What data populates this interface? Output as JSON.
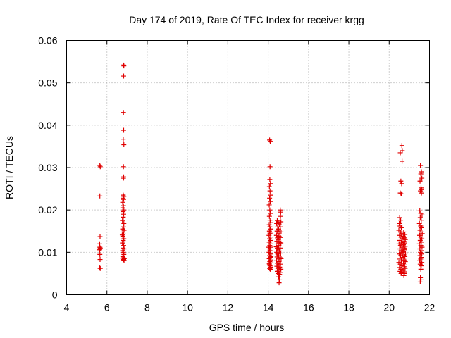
{
  "chart_data": {
    "type": "scatter",
    "title": "Day 174 of 2019, Rate Of TEC Index for receiver krgg",
    "xlabel": "GPS time / hours",
    "ylabel": "ROTI / TECUs",
    "xlim": [
      4,
      22
    ],
    "ylim": [
      0,
      0.06
    ],
    "x_ticks": [
      4,
      6,
      8,
      10,
      12,
      14,
      16,
      18,
      20,
      22
    ],
    "y_ticks": [
      0,
      0.01,
      0.02,
      0.03,
      0.04,
      0.05,
      0.06
    ],
    "x_tick_labels": [
      "4",
      "6",
      "8",
      "10",
      "12",
      "14",
      "16",
      "18",
      "20",
      "22"
    ],
    "y_tick_labels": [
      "0",
      "0.01",
      "0.02",
      "0.03",
      "0.04",
      "0.05",
      "0.06"
    ],
    "grid": true,
    "marker": "plus",
    "color": "#e00000",
    "points": [
      [
        5.65,
        0.0305
      ],
      [
        5.67,
        0.0302
      ],
      [
        5.65,
        0.0233
      ],
      [
        5.66,
        0.0137
      ],
      [
        5.64,
        0.012
      ],
      [
        5.65,
        0.0112
      ],
      [
        5.66,
        0.0108
      ],
      [
        5.64,
        0.0106
      ],
      [
        5.67,
        0.011
      ],
      [
        5.65,
        0.0095
      ],
      [
        5.66,
        0.0083
      ],
      [
        5.64,
        0.0063
      ],
      [
        5.67,
        0.0062
      ],
      [
        6.82,
        0.0542
      ],
      [
        6.84,
        0.054
      ],
      [
        6.83,
        0.0516
      ],
      [
        6.82,
        0.043
      ],
      [
        6.83,
        0.0388
      ],
      [
        6.81,
        0.0367
      ],
      [
        6.84,
        0.0354
      ],
      [
        6.82,
        0.0302
      ],
      [
        6.83,
        0.0278
      ],
      [
        6.82,
        0.0275
      ],
      [
        6.81,
        0.0235
      ],
      [
        6.84,
        0.0232
      ],
      [
        6.8,
        0.0228
      ],
      [
        6.83,
        0.0225
      ],
      [
        6.78,
        0.0218
      ],
      [
        6.82,
        0.021
      ],
      [
        6.79,
        0.0205
      ],
      [
        6.84,
        0.02
      ],
      [
        6.8,
        0.0196
      ],
      [
        6.83,
        0.019
      ],
      [
        6.81,
        0.0183
      ],
      [
        6.77,
        0.0175
      ],
      [
        6.84,
        0.0168
      ],
      [
        6.82,
        0.016
      ],
      [
        6.78,
        0.0155
      ],
      [
        6.85,
        0.0152
      ],
      [
        6.8,
        0.0148
      ],
      [
        6.83,
        0.0143
      ],
      [
        6.76,
        0.0141
      ],
      [
        6.79,
        0.0138
      ],
      [
        6.84,
        0.0132
      ],
      [
        6.81,
        0.0128
      ],
      [
        6.77,
        0.0122
      ],
      [
        6.83,
        0.0116
      ],
      [
        6.8,
        0.011
      ],
      [
        6.85,
        0.0108
      ],
      [
        6.78,
        0.0104
      ],
      [
        6.82,
        0.01
      ],
      [
        6.84,
        0.0095
      ],
      [
        6.79,
        0.009
      ],
      [
        6.81,
        0.0087
      ],
      [
        6.86,
        0.0085
      ],
      [
        6.83,
        0.0083
      ],
      [
        6.8,
        0.0082
      ],
      [
        6.78,
        0.0086
      ],
      [
        6.85,
        0.0081
      ],
      [
        14.07,
        0.0365
      ],
      [
        14.1,
        0.0362
      ],
      [
        14.09,
        0.0302
      ],
      [
        14.08,
        0.0272
      ],
      [
        14.11,
        0.0262
      ],
      [
        14.06,
        0.0255
      ],
      [
        14.09,
        0.0245
      ],
      [
        14.12,
        0.0235
      ],
      [
        14.07,
        0.0228
      ],
      [
        14.1,
        0.022
      ],
      [
        14.05,
        0.0212
      ],
      [
        14.08,
        0.02
      ],
      [
        14.11,
        0.0192
      ],
      [
        14.06,
        0.0185
      ],
      [
        14.09,
        0.0176
      ],
      [
        14.12,
        0.017
      ],
      [
        14.05,
        0.0165
      ],
      [
        14.08,
        0.016
      ],
      [
        14.11,
        0.0155
      ],
      [
        14.06,
        0.015
      ],
      [
        14.09,
        0.0145
      ],
      [
        14.04,
        0.014
      ],
      [
        14.12,
        0.0136
      ],
      [
        14.07,
        0.0132
      ],
      [
        14.1,
        0.0128
      ],
      [
        14.05,
        0.0124
      ],
      [
        14.13,
        0.012
      ],
      [
        14.08,
        0.0116
      ],
      [
        14.11,
        0.0112
      ],
      [
        14.06,
        0.0108
      ],
      [
        14.09,
        0.0104
      ],
      [
        14.04,
        0.01
      ],
      [
        14.12,
        0.0096
      ],
      [
        14.07,
        0.0092
      ],
      [
        14.1,
        0.0088
      ],
      [
        14.05,
        0.0085
      ],
      [
        14.13,
        0.0082
      ],
      [
        14.08,
        0.0078
      ],
      [
        14.11,
        0.0075
      ],
      [
        14.06,
        0.0072
      ],
      [
        14.09,
        0.0068
      ],
      [
        14.12,
        0.0065
      ],
      [
        14.07,
        0.0062
      ],
      [
        14.1,
        0.006
      ],
      [
        14.05,
        0.0074
      ],
      [
        14.14,
        0.009
      ],
      [
        14.03,
        0.0112
      ],
      [
        14.45,
        0.0175
      ],
      [
        14.5,
        0.017
      ],
      [
        14.42,
        0.0168
      ],
      [
        14.55,
        0.0165
      ],
      [
        14.47,
        0.016
      ],
      [
        14.52,
        0.0155
      ],
      [
        14.44,
        0.015
      ],
      [
        14.58,
        0.0148
      ],
      [
        14.49,
        0.0145
      ],
      [
        14.41,
        0.014
      ],
      [
        14.54,
        0.0138
      ],
      [
        14.46,
        0.0134
      ],
      [
        14.51,
        0.013
      ],
      [
        14.43,
        0.0126
      ],
      [
        14.57,
        0.0124
      ],
      [
        14.48,
        0.012
      ],
      [
        14.53,
        0.0116
      ],
      [
        14.4,
        0.0113
      ],
      [
        14.45,
        0.011
      ],
      [
        14.5,
        0.0106
      ],
      [
        14.56,
        0.0103
      ],
      [
        14.42,
        0.01
      ],
      [
        14.47,
        0.0096
      ],
      [
        14.52,
        0.0092
      ],
      [
        14.44,
        0.0089
      ],
      [
        14.59,
        0.0087
      ],
      [
        14.49,
        0.0084
      ],
      [
        14.41,
        0.008
      ],
      [
        14.54,
        0.0078
      ],
      [
        14.46,
        0.0074
      ],
      [
        14.51,
        0.007
      ],
      [
        14.43,
        0.0067
      ],
      [
        14.57,
        0.0065
      ],
      [
        14.48,
        0.0062
      ],
      [
        14.53,
        0.0058
      ],
      [
        14.45,
        0.0055
      ],
      [
        14.5,
        0.005
      ],
      [
        14.55,
        0.0048
      ],
      [
        14.58,
        0.0047
      ],
      [
        14.52,
        0.0042
      ],
      [
        14.56,
        0.0035
      ],
      [
        14.54,
        0.0028
      ],
      [
        14.6,
        0.02
      ],
      [
        14.62,
        0.0195
      ],
      [
        14.61,
        0.0185
      ],
      [
        14.63,
        0.0172
      ],
      [
        14.6,
        0.016
      ],
      [
        14.64,
        0.0148
      ],
      [
        14.61,
        0.0135
      ],
      [
        14.63,
        0.0122
      ],
      [
        14.6,
        0.011
      ],
      [
        14.62,
        0.0098
      ],
      [
        14.64,
        0.0085
      ],
      [
        14.61,
        0.0072
      ],
      [
        14.63,
        0.006
      ],
      [
        14.6,
        0.0052
      ],
      [
        20.55,
        0.0335
      ],
      [
        20.63,
        0.0352
      ],
      [
        20.65,
        0.034
      ],
      [
        20.64,
        0.0315
      ],
      [
        20.58,
        0.0268
      ],
      [
        20.62,
        0.0262
      ],
      [
        20.55,
        0.024
      ],
      [
        20.6,
        0.0238
      ],
      [
        20.52,
        0.0182
      ],
      [
        20.57,
        0.0176
      ],
      [
        20.5,
        0.0168
      ],
      [
        20.54,
        0.0162
      ],
      [
        20.6,
        0.0158
      ],
      [
        20.48,
        0.0152
      ],
      [
        20.56,
        0.0148
      ],
      [
        20.62,
        0.0145
      ],
      [
        20.51,
        0.014
      ],
      [
        20.58,
        0.0136
      ],
      [
        20.65,
        0.0132
      ],
      [
        20.53,
        0.0128
      ],
      [
        20.6,
        0.0124
      ],
      [
        20.49,
        0.012
      ],
      [
        20.56,
        0.0116
      ],
      [
        20.63,
        0.0112
      ],
      [
        20.52,
        0.0108
      ],
      [
        20.59,
        0.0104
      ],
      [
        20.66,
        0.01
      ],
      [
        20.5,
        0.0096
      ],
      [
        20.57,
        0.0092
      ],
      [
        20.64,
        0.0088
      ],
      [
        20.53,
        0.0084
      ],
      [
        20.6,
        0.008
      ],
      [
        20.48,
        0.0076
      ],
      [
        20.55,
        0.0072
      ],
      [
        20.62,
        0.0068
      ],
      [
        20.51,
        0.0064
      ],
      [
        20.58,
        0.006
      ],
      [
        20.65,
        0.0057
      ],
      [
        20.54,
        0.0055
      ],
      [
        20.61,
        0.0053
      ],
      [
        20.59,
        0.005
      ],
      [
        20.72,
        0.0148
      ],
      [
        20.78,
        0.0142
      ],
      [
        20.7,
        0.0138
      ],
      [
        20.75,
        0.0134
      ],
      [
        20.8,
        0.013
      ],
      [
        20.73,
        0.0126
      ],
      [
        20.77,
        0.0122
      ],
      [
        20.71,
        0.0118
      ],
      [
        20.79,
        0.0114
      ],
      [
        20.74,
        0.011
      ],
      [
        20.76,
        0.0106
      ],
      [
        20.7,
        0.0102
      ],
      [
        20.81,
        0.0098
      ],
      [
        20.73,
        0.0094
      ],
      [
        20.78,
        0.009
      ],
      [
        20.72,
        0.0086
      ],
      [
        20.75,
        0.0082
      ],
      [
        20.8,
        0.0078
      ],
      [
        20.71,
        0.0074
      ],
      [
        20.77,
        0.007
      ],
      [
        20.74,
        0.0066
      ],
      [
        20.79,
        0.0062
      ],
      [
        20.72,
        0.0058
      ],
      [
        20.76,
        0.0054
      ],
      [
        20.75,
        0.005
      ],
      [
        20.73,
        0.0045
      ],
      [
        21.55,
        0.0305
      ],
      [
        21.6,
        0.029
      ],
      [
        21.57,
        0.0285
      ],
      [
        21.62,
        0.0275
      ],
      [
        21.53,
        0.0268
      ],
      [
        21.58,
        0.0252
      ],
      [
        21.61,
        0.0248
      ],
      [
        21.55,
        0.0245
      ],
      [
        21.6,
        0.024
      ],
      [
        21.52,
        0.0198
      ],
      [
        21.57,
        0.0192
      ],
      [
        21.63,
        0.0188
      ],
      [
        21.54,
        0.0182
      ],
      [
        21.59,
        0.0176
      ],
      [
        21.5,
        0.0168
      ],
      [
        21.56,
        0.0162
      ],
      [
        21.61,
        0.0158
      ],
      [
        21.53,
        0.0152
      ],
      [
        21.58,
        0.0148
      ],
      [
        21.64,
        0.0144
      ],
      [
        21.51,
        0.014
      ],
      [
        21.56,
        0.0136
      ],
      [
        21.62,
        0.0132
      ],
      [
        21.54,
        0.0128
      ],
      [
        21.59,
        0.0124
      ],
      [
        21.5,
        0.012
      ],
      [
        21.57,
        0.0116
      ],
      [
        21.63,
        0.0112
      ],
      [
        21.52,
        0.0108
      ],
      [
        21.58,
        0.0104
      ],
      [
        21.55,
        0.01
      ],
      [
        21.61,
        0.0096
      ],
      [
        21.53,
        0.0092
      ],
      [
        21.6,
        0.0088
      ],
      [
        21.56,
        0.0084
      ],
      [
        21.51,
        0.008
      ],
      [
        21.62,
        0.0076
      ],
      [
        21.54,
        0.0072
      ],
      [
        21.59,
        0.0068
      ],
      [
        21.57,
        0.006
      ],
      [
        21.55,
        0.004
      ],
      [
        21.58,
        0.0035
      ],
      [
        21.54,
        0.003
      ]
    ]
  }
}
